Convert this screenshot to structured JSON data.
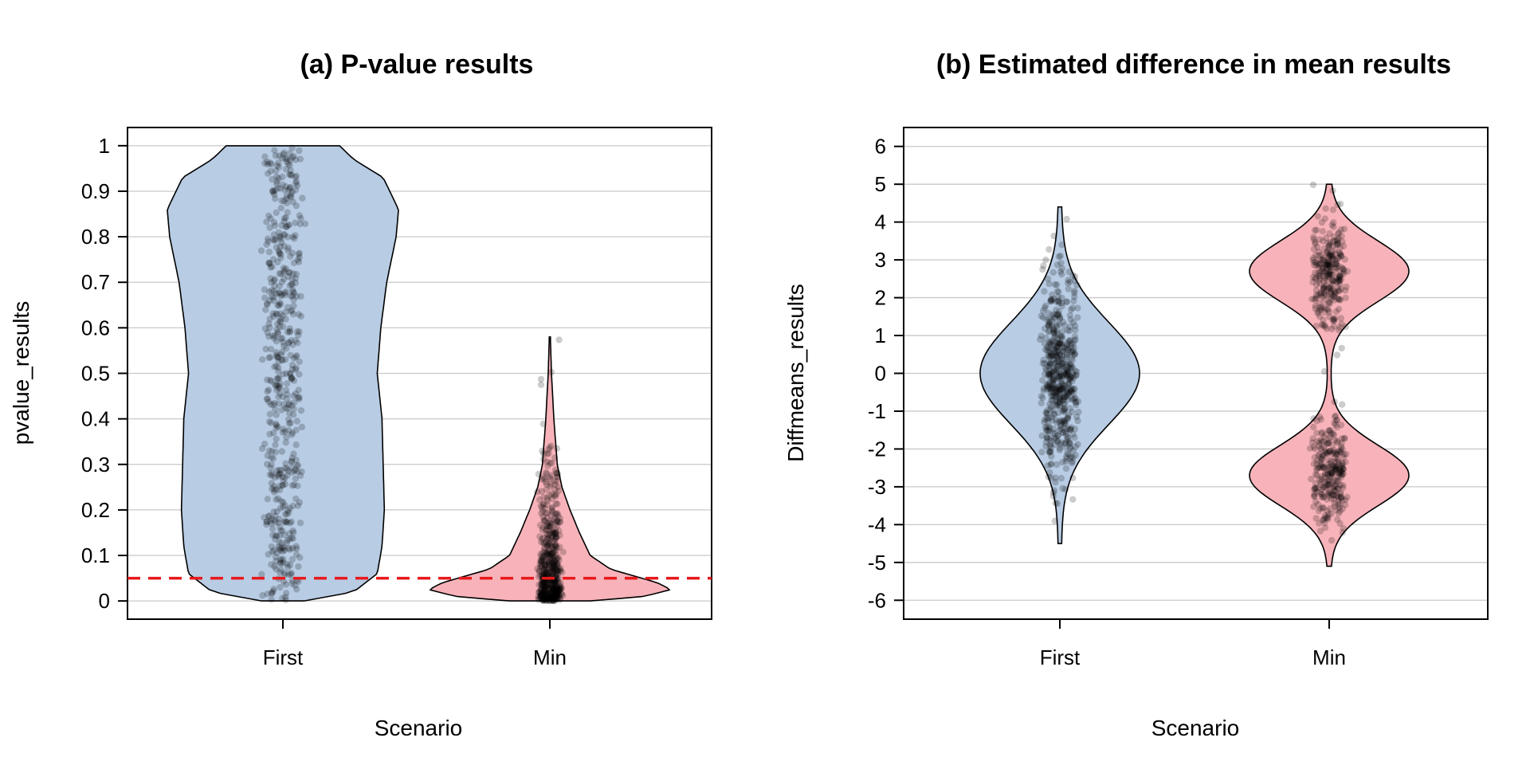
{
  "chart_data": [
    {
      "type": "violin",
      "title": "(a) P-value results",
      "xlabel": "Scenario",
      "ylabel": "pvalue_results",
      "categories": [
        "First",
        "Min"
      ],
      "ylim": [
        -0.04,
        1.04
      ],
      "yticks": [
        0,
        0.1,
        0.2,
        0.3,
        0.4,
        0.5,
        0.6,
        0.7,
        0.8,
        0.9,
        1
      ],
      "ytick_labels": [
        "0",
        "0.1",
        "0.2",
        "0.3",
        "0.4",
        "0.5",
        "0.6",
        "0.7",
        "0.8",
        "0.9",
        "1"
      ],
      "grid": true,
      "reference_line": {
        "y": 0.05,
        "color": "#e8191c",
        "style": "dashed"
      },
      "series": [
        {
          "name": "First",
          "color": "#b8cce4",
          "range": [
            0,
            1
          ],
          "profile": [
            [
              0,
              0.18
            ],
            [
              0.02,
              0.6
            ],
            [
              0.06,
              0.8
            ],
            [
              0.12,
              0.84
            ],
            [
              0.2,
              0.86
            ],
            [
              0.3,
              0.85
            ],
            [
              0.4,
              0.84
            ],
            [
              0.5,
              0.8
            ],
            [
              0.6,
              0.83
            ],
            [
              0.7,
              0.88
            ],
            [
              0.8,
              0.96
            ],
            [
              0.86,
              0.98
            ],
            [
              0.93,
              0.85
            ],
            [
              0.97,
              0.6
            ],
            [
              1,
              0.48
            ]
          ],
          "points": {
            "n": 550,
            "dist": "uniform",
            "min": 0,
            "max": 1,
            "spread": 0.1
          }
        },
        {
          "name": "Min",
          "color": "#f8b3ba",
          "range": [
            0,
            0.58
          ],
          "profile": [
            [
              0,
              0.3
            ],
            [
              0.01,
              0.7
            ],
            [
              0.025,
              0.9
            ],
            [
              0.04,
              0.8
            ],
            [
              0.07,
              0.45
            ],
            [
              0.1,
              0.3
            ],
            [
              0.15,
              0.22
            ],
            [
              0.2,
              0.15
            ],
            [
              0.25,
              0.09
            ],
            [
              0.3,
              0.055
            ],
            [
              0.4,
              0.03
            ],
            [
              0.5,
              0.012
            ],
            [
              0.58,
              0.004
            ]
          ],
          "points": {
            "n": 550,
            "dist": "exp",
            "min": 0,
            "max": 0.58,
            "scale": 0.09,
            "spread": 0.06
          }
        }
      ]
    },
    {
      "type": "violin",
      "title": "(b) Estimated difference in mean results",
      "xlabel": "Scenario",
      "ylabel": "Diffmeans_results",
      "categories": [
        "First",
        "Min"
      ],
      "ylim": [
        -6.5,
        6.5
      ],
      "yticks": [
        -6,
        -5,
        -4,
        -3,
        -2,
        -1,
        0,
        1,
        2,
        3,
        4,
        5,
        6
      ],
      "ytick_labels": [
        "-6",
        "-5",
        "-4",
        "-3",
        "-2",
        "-1",
        "0",
        "1",
        "2",
        "3",
        "4",
        "5",
        "6"
      ],
      "grid": true,
      "series": [
        {
          "name": "First",
          "color": "#b8cce4",
          "range": [
            -4.5,
            4.4
          ],
          "profile": "gauss",
          "gauss": {
            "mu": 0,
            "sigma": 1.35,
            "peak": 0.6
          },
          "points": {
            "n": 550,
            "dist": "normal",
            "mu": 0,
            "sigma": 1.3,
            "min": -4.5,
            "max": 4.4,
            "spread": 0.09
          }
        },
        {
          "name": "Min",
          "color": "#f8b3ba",
          "range": [
            -5.1,
            5.0
          ],
          "profile": "bimodal",
          "gauss": {
            "mu": 2.7,
            "sigma": 0.8,
            "peak": 0.66
          },
          "points": {
            "n": 550,
            "dist": "bimodal",
            "mu": 2.6,
            "sigma": 0.75,
            "min": -5.1,
            "max": 5.0,
            "spread": 0.09
          }
        }
      ]
    }
  ]
}
